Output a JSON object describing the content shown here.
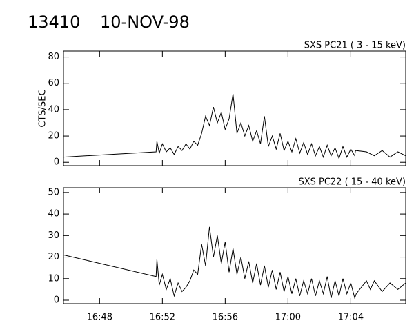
{
  "header": {
    "id": "13410",
    "date": "10-NOV-98"
  },
  "chart_data": [
    {
      "type": "line",
      "title": "SXS PC21  (  3 - 15 keV)",
      "y_label": "CTS/SEC",
      "xlim": [
        1005.7,
        1027.5
      ],
      "ylim": [
        -2.5,
        84.5
      ],
      "yticks": [
        0,
        20,
        40,
        60,
        80
      ],
      "series": [
        {
          "color": "#000000",
          "x": [
            1005.7,
            1011.6,
            1011.65,
            1011.8,
            1012.0,
            1012.25,
            1012.5,
            1012.75,
            1013.0,
            1013.25,
            1013.5,
            1013.75,
            1014.0,
            1014.25,
            1014.5,
            1014.75,
            1015.0,
            1015.25,
            1015.5,
            1015.75,
            1016.0,
            1016.25,
            1016.5,
            1016.75,
            1017.0,
            1017.25,
            1017.5,
            1017.75,
            1018.0,
            1018.25,
            1018.5,
            1018.75,
            1019.0,
            1019.25,
            1019.5,
            1019.75,
            1020.0,
            1020.25,
            1020.5,
            1020.75,
            1021.0,
            1021.25,
            1021.5,
            1021.75,
            1022.0,
            1022.25,
            1022.5,
            1022.75,
            1023.0,
            1023.25,
            1023.5,
            1023.75,
            1024.0,
            1024.25,
            1024.3,
            1025.0,
            1025.5,
            1026.0,
            1026.5,
            1027.0,
            1027.5
          ],
          "values": [
            4,
            8,
            16,
            7,
            14,
            8,
            11,
            6,
            12,
            9,
            14,
            10,
            16,
            13,
            22,
            35,
            28,
            42,
            30,
            38,
            25,
            33,
            52,
            22,
            30,
            20,
            28,
            16,
            24,
            14,
            35,
            12,
            20,
            10,
            22,
            9,
            16,
            8,
            18,
            7,
            15,
            6,
            14,
            5,
            12,
            4,
            13,
            5,
            11,
            3,
            12,
            4,
            10,
            5,
            9,
            8,
            5,
            9,
            4,
            8,
            5
          ]
        }
      ]
    },
    {
      "type": "line",
      "title": "SXS PC22  ( 15 - 40 keV)",
      "xlim": [
        1005.7,
        1027.5
      ],
      "ylim": [
        -1.6,
        52.2
      ],
      "yticks": [
        0,
        10,
        20,
        30,
        40,
        50
      ],
      "xticks": [
        {
          "value": 1008,
          "label": "16:48"
        },
        {
          "value": 1012,
          "label": "16:52"
        },
        {
          "value": 1016,
          "label": "16:56"
        },
        {
          "value": 1020,
          "label": "17:00"
        },
        {
          "value": 1024,
          "label": "17:04"
        }
      ],
      "series": [
        {
          "color": "#000000",
          "x": [
            1005.7,
            1011.6,
            1011.65,
            1011.8,
            1012.0,
            1012.25,
            1012.5,
            1012.75,
            1013.0,
            1013.25,
            1013.5,
            1013.75,
            1014.0,
            1014.25,
            1014.5,
            1014.75,
            1015.0,
            1015.25,
            1015.5,
            1015.75,
            1016.0,
            1016.25,
            1016.5,
            1016.75,
            1017.0,
            1017.25,
            1017.5,
            1017.75,
            1018.0,
            1018.25,
            1018.5,
            1018.75,
            1019.0,
            1019.25,
            1019.5,
            1019.75,
            1020.0,
            1020.25,
            1020.5,
            1020.75,
            1021.0,
            1021.25,
            1021.5,
            1021.75,
            1022.0,
            1022.25,
            1022.5,
            1022.75,
            1023.0,
            1023.25,
            1023.5,
            1023.75,
            1024.0,
            1024.25,
            1024.35,
            1025.0,
            1025.25,
            1025.5,
            1026.0,
            1026.5,
            1027.0,
            1027.5
          ],
          "values": [
            21,
            11,
            19,
            7,
            12,
            5,
            10,
            2,
            8,
            4,
            6,
            9,
            14,
            12,
            26,
            16,
            34,
            20,
            30,
            17,
            27,
            13,
            24,
            12,
            20,
            10,
            18,
            8,
            17,
            7,
            16,
            6,
            14,
            5,
            13,
            4,
            11,
            3,
            10,
            2,
            9,
            3,
            10,
            2,
            9,
            3,
            11,
            1,
            9,
            2,
            10,
            3,
            8,
            1,
            3,
            9,
            5,
            9,
            4,
            8,
            5,
            8
          ]
        }
      ]
    }
  ]
}
